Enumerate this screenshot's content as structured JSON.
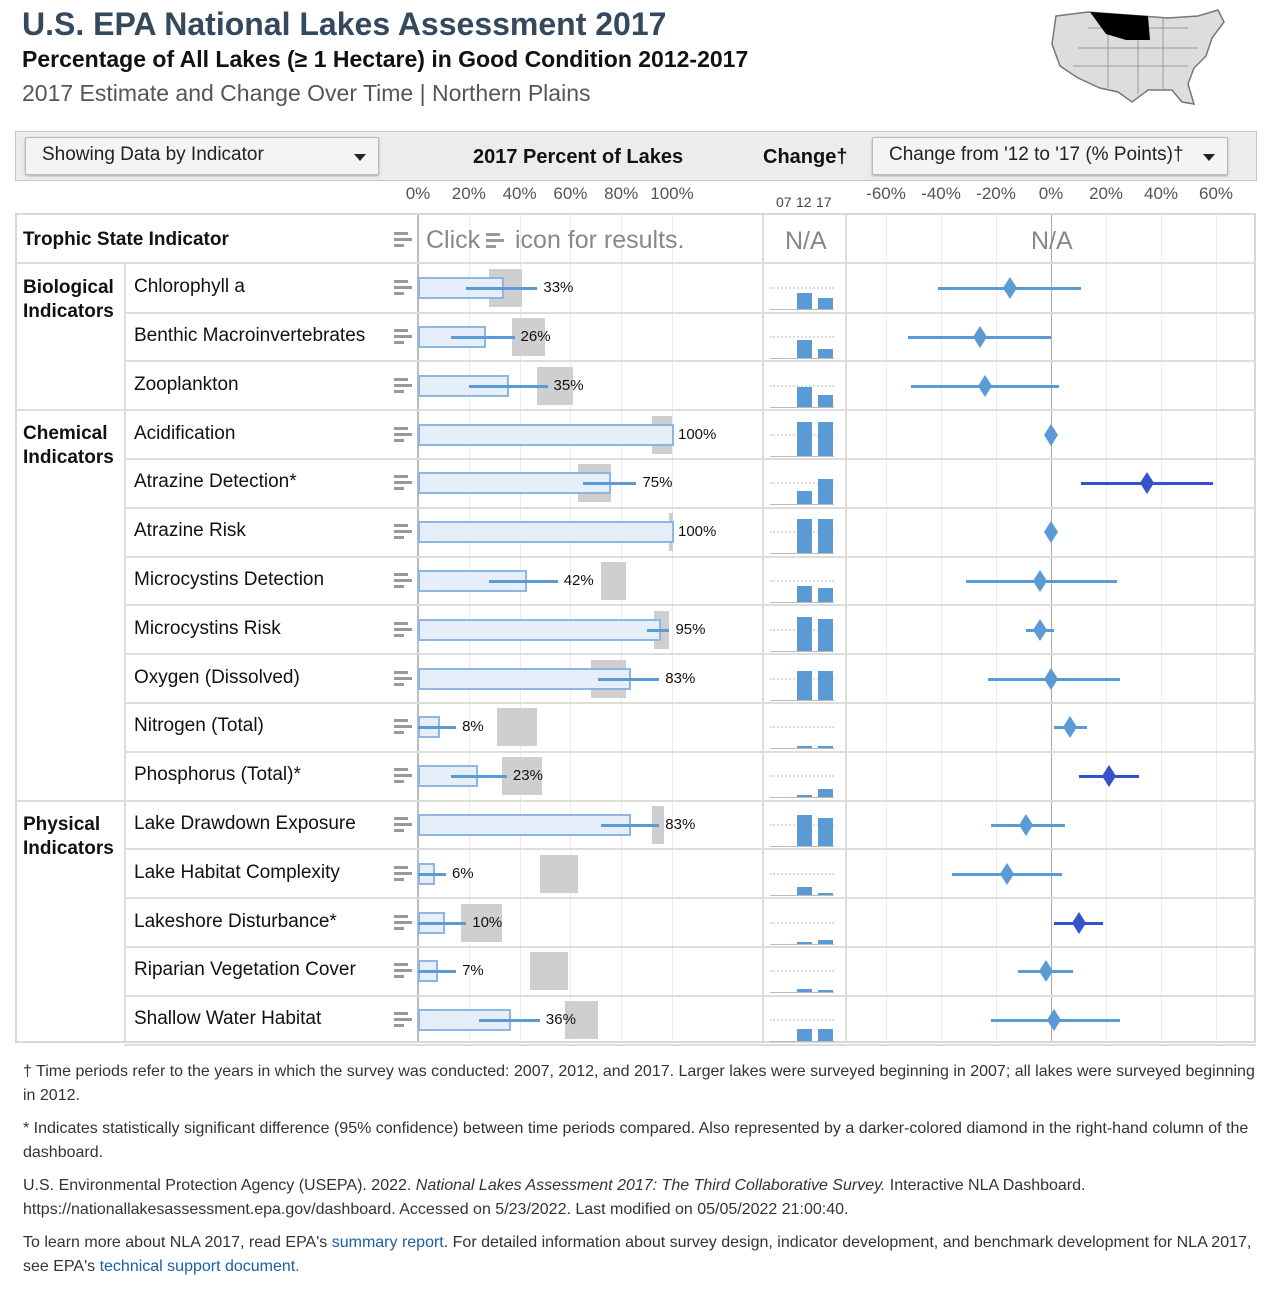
{
  "header": {
    "title": "U.S. EPA National Lakes Assessment 2017",
    "subtitle": "Percentage of All Lakes (≥ 1 Hectare) in Good Condition 2012-2017",
    "subtitle2": "2017 Estimate and Change Over Time | Northern Plains",
    "map_highlight": "Northern Plains"
  },
  "toolbar": {
    "indicator_dropdown": "Showing Data by Indicator",
    "col_percent": "2017 Percent of Lakes",
    "col_change": "Change†",
    "change_dropdown": "Change from '12 to '17 (% Points)†"
  },
  "axes": {
    "percent_ticks": [
      "0%",
      "20%",
      "40%",
      "60%",
      "80%",
      "100%"
    ],
    "years": [
      "07",
      "12",
      "17"
    ],
    "change_ticks": [
      "-60%",
      "-40%",
      "-20%",
      "0%",
      "20%",
      "40%",
      "60%"
    ]
  },
  "trophic": {
    "label": "Trophic State Indicator",
    "click_text": "Click",
    "icon_text": "icon for results.",
    "na_change": "N/A",
    "na_diff": "N/A"
  },
  "groups": [
    {
      "label": "Biological Indicators",
      "rows": [
        0,
        2
      ]
    },
    {
      "label": "Chemical Indicators",
      "rows": [
        3,
        10
      ]
    },
    {
      "label": "Physical Indicators",
      "rows": [
        11,
        15
      ]
    }
  ],
  "colors": {
    "bar_fill": "#e6eff9",
    "bar_border": "#8db6e0",
    "ci": "#5a9bd5",
    "significant": "#3352cc",
    "gray": "#cfcfcf"
  },
  "rows": [
    {
      "name": "Chlorophyll a",
      "value": 33,
      "label": "33%",
      "ci": [
        19,
        47
      ],
      "gray": [
        28,
        41
      ],
      "p2012": 48,
      "change": -15,
      "change_ci": [
        -41,
        11
      ],
      "sig": false
    },
    {
      "name": "Benthic Macroinvertebrates",
      "value": 26,
      "label": "26%",
      "ci": [
        13,
        38
      ],
      "gray": [
        37,
        50
      ],
      "p2012": 52,
      "change": -26,
      "change_ci": [
        -52,
        0
      ],
      "sig": false
    },
    {
      "name": "Zooplankton",
      "value": 35,
      "label": "35%",
      "ci": [
        20,
        51
      ],
      "gray": [
        47,
        61
      ],
      "p2012": 59,
      "change": -24,
      "change_ci": [
        -51,
        3
      ],
      "sig": false
    },
    {
      "name": "Acidification",
      "value": 100,
      "label": "100%",
      "ci": [
        100,
        100
      ],
      "gray": [
        92,
        100
      ],
      "p2012": 100,
      "change": 0,
      "change_ci": [
        0,
        0
      ],
      "sig": false
    },
    {
      "name": "Atrazine Detection*",
      "value": 75,
      "label": "75%",
      "ci": [
        65,
        86
      ],
      "gray": [
        63,
        76
      ],
      "p2012": 40,
      "change": 35,
      "change_ci": [
        11,
        59
      ],
      "sig": true
    },
    {
      "name": "Atrazine Risk",
      "value": 100,
      "label": "100%",
      "ci": [
        100,
        100
      ],
      "gray": [
        99,
        100
      ],
      "p2012": 100,
      "change": 0,
      "change_ci": [
        0,
        0
      ],
      "sig": false
    },
    {
      "name": "Microcystins Detection",
      "value": 42,
      "label": "42%",
      "ci": [
        28,
        55
      ],
      "gray": [
        72,
        82
      ],
      "p2012": 46,
      "change": -4,
      "change_ci": [
        -31,
        24
      ],
      "sig": false
    },
    {
      "name": "Microcystins Risk",
      "value": 95,
      "label": "95%",
      "ci": [
        90,
        99
      ],
      "gray": [
        93,
        99
      ],
      "p2012": 99,
      "change": -4,
      "change_ci": [
        -9,
        1
      ],
      "sig": false
    },
    {
      "name": "Oxygen (Dissolved)",
      "value": 83,
      "label": "83%",
      "ci": [
        71,
        95
      ],
      "gray": [
        68,
        82
      ],
      "p2012": 83,
      "change": 0,
      "change_ci": [
        -23,
        25
      ],
      "sig": false
    },
    {
      "name": "Nitrogen (Total)",
      "value": 8,
      "label": "8%",
      "ci": [
        0,
        15
      ],
      "gray": [
        31,
        47
      ],
      "p2012": 1,
      "change": 7,
      "change_ci": [
        1,
        13
      ],
      "sig": false
    },
    {
      "name": "Phosphorus (Total)*",
      "value": 23,
      "label": "23%",
      "ci": [
        13,
        35
      ],
      "gray": [
        33,
        49
      ],
      "p2012": 2,
      "change": 21,
      "change_ci": [
        10,
        32
      ],
      "sig": true
    },
    {
      "name": "Lake Drawdown Exposure",
      "value": 83,
      "label": "83%",
      "ci": [
        72,
        95
      ],
      "gray": [
        92,
        97
      ],
      "p2012": 92,
      "change": -9,
      "change_ci": [
        -22,
        5
      ],
      "sig": false
    },
    {
      "name": "Lake Habitat Complexity",
      "value": 6,
      "label": "6%",
      "ci": [
        0,
        11
      ],
      "gray": [
        48,
        63
      ],
      "p2012": 22,
      "change": -16,
      "change_ci": [
        -36,
        4
      ],
      "sig": false
    },
    {
      "name": "Lakeshore Disturbance*",
      "value": 10,
      "label": "10%",
      "ci": [
        0,
        19
      ],
      "gray": [
        17,
        33
      ],
      "p2012": 0,
      "change": 10,
      "change_ci": [
        1,
        19
      ],
      "sig": true
    },
    {
      "name": "Riparian Vegetation Cover",
      "value": 7,
      "label": "7%",
      "ci": [
        0,
        15
      ],
      "gray": [
        44,
        59
      ],
      "p2012": 9,
      "change": -2,
      "change_ci": [
        -12,
        8
      ],
      "sig": false
    },
    {
      "name": "Shallow Water Habitat",
      "value": 36,
      "label": "36%",
      "ci": [
        24,
        48
      ],
      "gray": [
        58,
        71
      ],
      "p2012": 35,
      "change": 1,
      "change_ci": [
        -22,
        25
      ],
      "sig": false
    }
  ],
  "footnotes": {
    "dagger": "† Time periods refer to the years in which the survey was conducted: 2007, 2012, and 2017. Larger lakes were surveyed beginning in 2007; all lakes were surveyed beginning in 2012.",
    "asterisk": "* Indicates statistically significant difference (95% confidence) between time periods compared. Also represented by a darker-colored diamond in the right-hand column of the dashboard.",
    "citation_a": "U.S. Environmental Protection Agency (USEPA). 2022. ",
    "citation_title": "National Lakes Assessment 2017: The Third Collaborative Survey.",
    "citation_b": " Interactive NLA Dashboard. https://nationallakesassessment.epa.gov/dashboard. Accessed on 5/23/2022. Last modified on 05/05/2022 21:00:40.",
    "learn_a": "To learn more about NLA 2017, read EPA's ",
    "learn_link1": "summary report",
    "learn_b": ". For detailed information about survey design, indicator development, and benchmark development for NLA 2017, see EPA's ",
    "learn_link2": "technical support document."
  }
}
